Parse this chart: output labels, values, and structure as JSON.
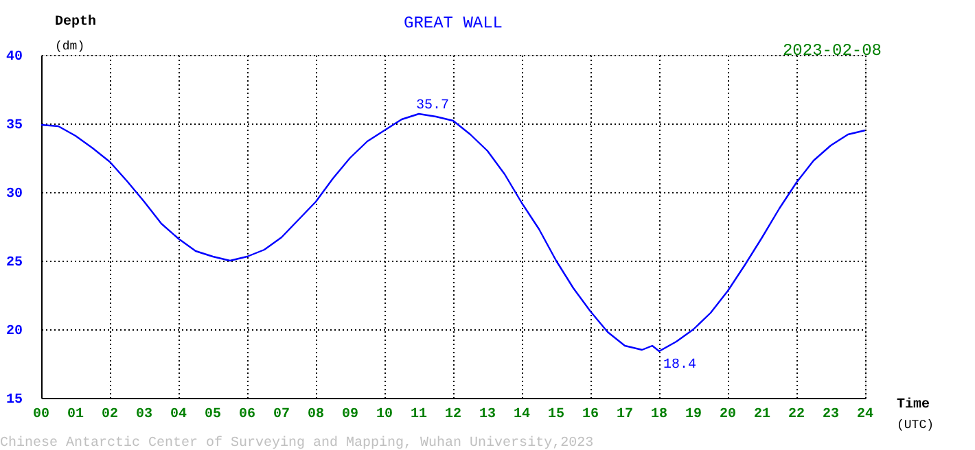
{
  "chart_data": {
    "type": "line",
    "title": "GREAT WALL",
    "xlabel": "Time (UTC)",
    "ylabel": "Depth (dm)",
    "x": [
      0,
      0.5,
      1,
      1.5,
      2,
      2.5,
      3,
      3.5,
      4,
      4.5,
      5,
      5.5,
      6,
      6.5,
      7,
      7.5,
      8,
      8.5,
      9,
      9.5,
      10,
      10.5,
      11,
      11.5,
      12,
      12.5,
      13,
      13.5,
      14,
      14.5,
      15,
      15.5,
      16,
      16.5,
      17,
      17.5,
      17.8,
      18,
      18.5,
      19,
      19.5,
      20,
      20.5,
      21,
      21.5,
      22,
      22.5,
      23,
      23.5,
      24
    ],
    "series": [
      {
        "color": "#0000ff",
        "values": [
          34.9,
          34.8,
          34.1,
          33.2,
          32.2,
          30.8,
          29.3,
          27.7,
          26.6,
          25.7,
          25.3,
          25.0,
          25.3,
          25.8,
          26.7,
          28.0,
          29.3,
          31.0,
          32.5,
          33.7,
          34.5,
          35.3,
          35.7,
          35.5,
          35.2,
          34.2,
          33.0,
          31.3,
          29.2,
          27.3,
          25.0,
          23.0,
          21.3,
          19.8,
          18.8,
          18.5,
          18.8,
          18.4,
          19.1,
          20.0,
          21.2,
          22.8,
          24.7,
          26.7,
          28.8,
          30.7,
          32.3,
          33.4,
          34.2,
          34.5
        ]
      }
    ],
    "xlim": [
      0,
      24
    ],
    "ylim": [
      15,
      40
    ],
    "xticks": [
      {
        "value": 0,
        "label": "00"
      },
      {
        "value": 1,
        "label": "01"
      },
      {
        "value": 2,
        "label": "02"
      },
      {
        "value": 3,
        "label": "03"
      },
      {
        "value": 4,
        "label": "04"
      },
      {
        "value": 5,
        "label": "05"
      },
      {
        "value": 6,
        "label": "06"
      },
      {
        "value": 7,
        "label": "07"
      },
      {
        "value": 8,
        "label": "08"
      },
      {
        "value": 9,
        "label": "09"
      },
      10,
      11,
      12,
      13,
      14,
      15,
      16,
      17,
      18,
      19,
      20,
      21,
      22,
      23,
      24
    ],
    "yticks": [
      15,
      20,
      25,
      30,
      35,
      40
    ],
    "grid": true,
    "line_style": "solid",
    "marker": "none",
    "annotations": [
      {
        "text": "35.7",
        "x": 11,
        "y": 35.7
      },
      {
        "text": "18.4",
        "x": 18,
        "y": 18.4
      },
      "2023-02-08",
      "Chinese Antarctic Center of Surveying and Mapping, Wuhan University,2023"
    ]
  }
}
